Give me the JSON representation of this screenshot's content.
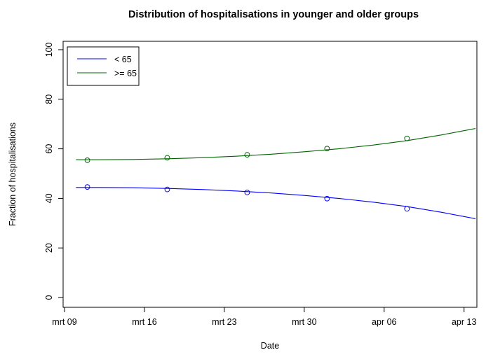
{
  "chart_data": {
    "type": "line",
    "title": "Distribution of hospitalisations in younger and older groups",
    "xlabel": "Date",
    "ylabel": "Fraction of hospitalisations",
    "xlim": [
      "2020-03-09",
      "2020-04-14"
    ],
    "ylim": [
      0,
      100
    ],
    "x_ticks": [
      "2020-03-09",
      "2020-03-16",
      "2020-03-23",
      "2020-03-30",
      "2020-04-06",
      "2020-04-13"
    ],
    "x_tick_labels": [
      "mrt 09",
      "mrt 16",
      "mrt 23",
      "mrt 30",
      "apr 06",
      "apr 13"
    ],
    "y_ticks": [
      0,
      20,
      40,
      60,
      80,
      100
    ],
    "y_tick_labels": [
      "0",
      "20",
      "40",
      "60",
      "80",
      "100"
    ],
    "legend_position": "top-left",
    "grid": false,
    "series": [
      {
        "name": "< 65",
        "color": "#0000ff",
        "points": {
          "x": [
            "2020-03-11",
            "2020-03-18",
            "2020-03-25",
            "2020-04-01",
            "2020-04-08"
          ],
          "y": [
            44.6,
            43.6,
            42.4,
            39.9,
            35.8
          ]
        },
        "curve": {
          "x": [
            "2020-03-10",
            "2020-03-12",
            "2020-03-15",
            "2020-03-18",
            "2020-03-21",
            "2020-03-24",
            "2020-03-27",
            "2020-03-30",
            "2020-04-02",
            "2020-04-05",
            "2020-04-08",
            "2020-04-11",
            "2020-04-14"
          ],
          "y": [
            44.4,
            44.4,
            44.3,
            44.0,
            43.6,
            43.0,
            42.2,
            41.2,
            40.0,
            38.5,
            36.7,
            34.4,
            31.8
          ]
        }
      },
      {
        "name": ">= 65",
        "color": "#006400",
        "points": {
          "x": [
            "2020-03-11",
            "2020-03-18",
            "2020-03-25",
            "2020-04-01",
            "2020-04-08"
          ],
          "y": [
            55.4,
            56.4,
            57.6,
            60.1,
            64.2
          ]
        },
        "curve": {
          "x": [
            "2020-03-10",
            "2020-03-12",
            "2020-03-15",
            "2020-03-18",
            "2020-03-21",
            "2020-03-24",
            "2020-03-27",
            "2020-03-30",
            "2020-04-02",
            "2020-04-05",
            "2020-04-08",
            "2020-04-11",
            "2020-04-14"
          ],
          "y": [
            55.6,
            55.6,
            55.7,
            56.0,
            56.4,
            57.0,
            57.8,
            58.8,
            60.0,
            61.5,
            63.3,
            65.6,
            68.2
          ]
        }
      }
    ]
  }
}
